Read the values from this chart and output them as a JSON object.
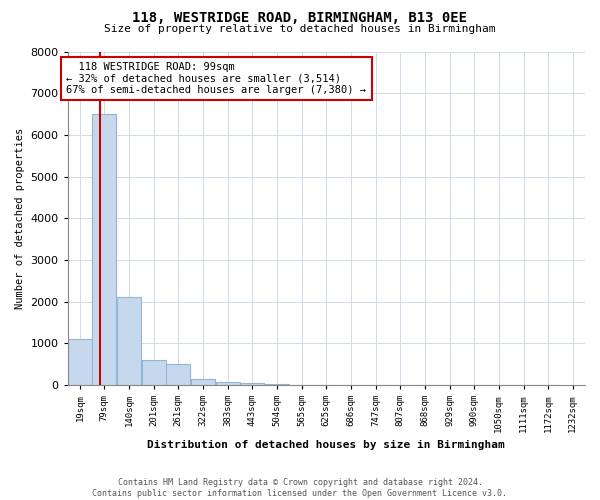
{
  "title": "118, WESTRIDGE ROAD, BIRMINGHAM, B13 0EE",
  "subtitle": "Size of property relative to detached houses in Birmingham",
  "xlabel": "Distribution of detached houses by size in Birmingham",
  "ylabel": "Number of detached properties",
  "bins": [
    19,
    79,
    140,
    201,
    261,
    322,
    383,
    443,
    504,
    565,
    625,
    686,
    747,
    807,
    868,
    929,
    990,
    1050,
    1111,
    1172,
    1232
  ],
  "counts": [
    1100,
    6500,
    2100,
    600,
    500,
    150,
    80,
    50,
    15,
    0,
    0,
    0,
    0,
    0,
    0,
    0,
    0,
    0,
    0,
    0
  ],
  "bar_color": "#c6d8ee",
  "bar_edge_color": "#94b4d4",
  "property_line_x": 99,
  "property_line_color": "#cc0000",
  "annotation_text": "  118 WESTRIDGE ROAD: 99sqm\n← 32% of detached houses are smaller (3,514)\n67% of semi-detached houses are larger (7,380) →",
  "annotation_box_color": "#ffffff",
  "annotation_box_edge_color": "#cc0000",
  "ylim": [
    0,
    8000
  ],
  "yticks": [
    0,
    1000,
    2000,
    3000,
    4000,
    5000,
    6000,
    7000,
    8000
  ],
  "footnote": "Contains HM Land Registry data © Crown copyright and database right 2024.\nContains public sector information licensed under the Open Government Licence v3.0.",
  "bg_color": "#ffffff",
  "grid_color": "#d0daea"
}
